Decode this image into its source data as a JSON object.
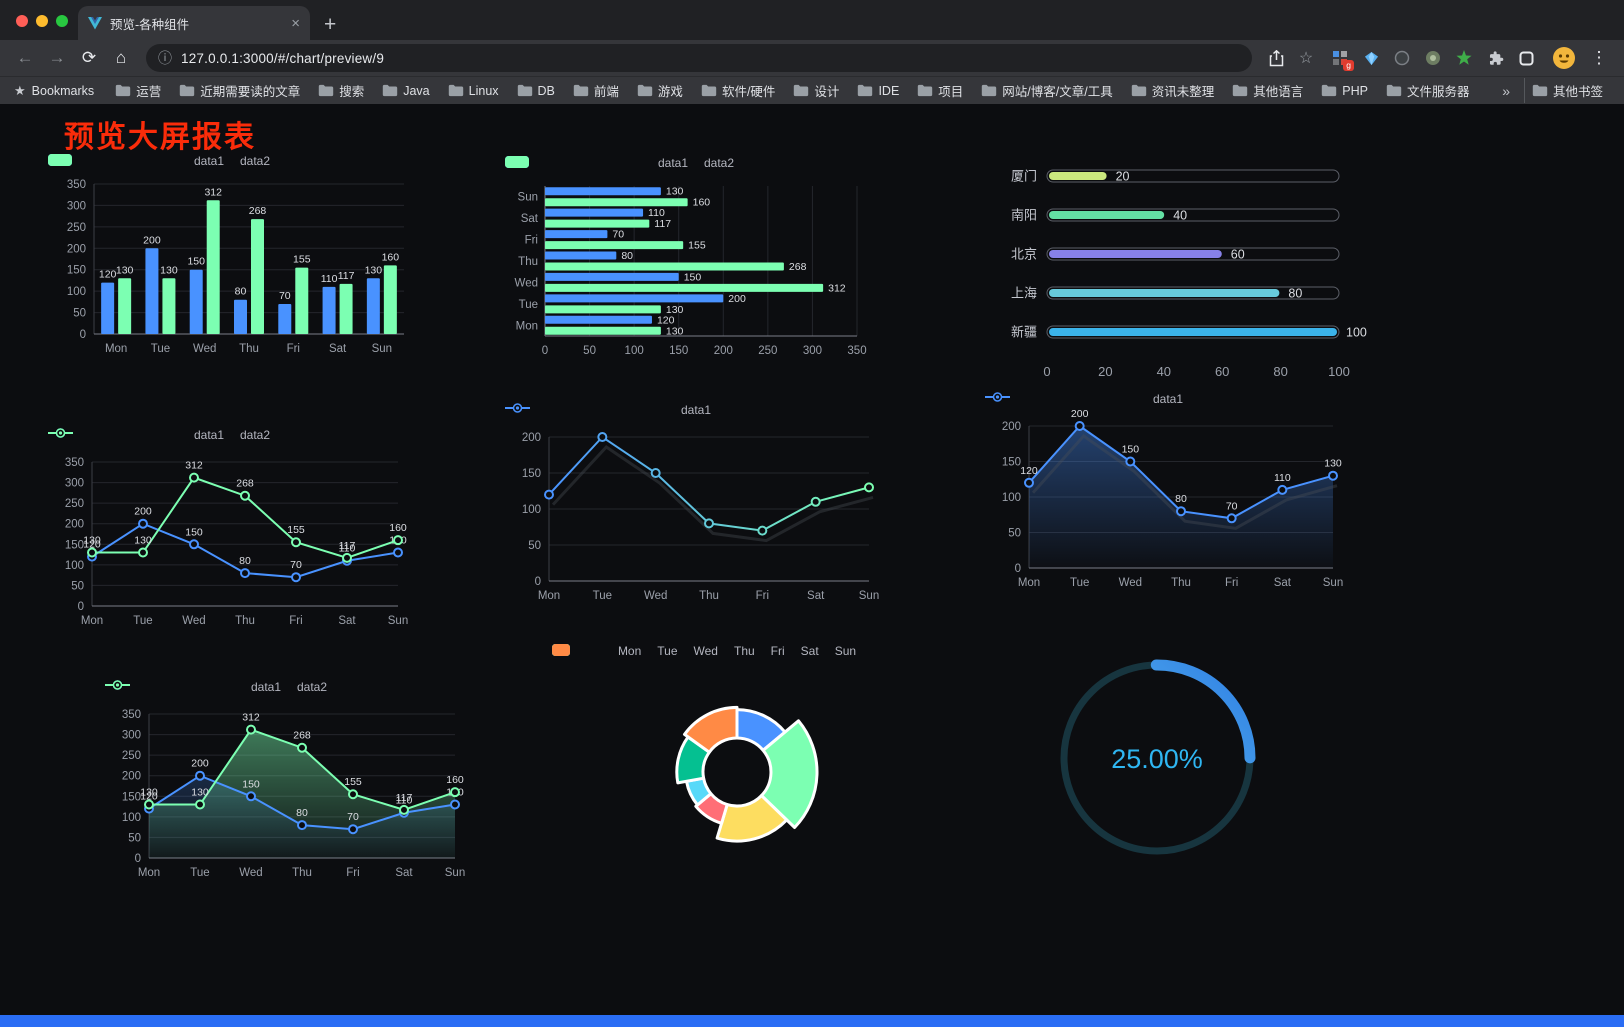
{
  "browser": {
    "tab_title": "预览-各种组件",
    "url": "127.0.0.1:3000/#/chart/preview/9",
    "bookmarks_label": "Bookmarks",
    "bookmarks": [
      "运营",
      "近期需要读的文章",
      "搜索",
      "Java",
      "Linux",
      "DB",
      "前端",
      "游戏",
      "软件/硬件",
      "设计",
      "IDE",
      "项目",
      "网站/博客/文章/工具",
      "资讯未整理",
      "其他语言",
      "PHP",
      "文件服务器"
    ],
    "bookmarks_overflow": "»",
    "other_bookmarks": "其他书签",
    "extensions_badge": "g"
  },
  "page": {
    "title": "预览大屏报表",
    "title_color": "#fa2c0a",
    "footer_color": "#2a6df4"
  },
  "chart_data": [
    {
      "type": "bar",
      "legend": true,
      "legend_marker": "rect",
      "labels": true,
      "grid": true,
      "categories": [
        "Mon",
        "Tue",
        "Wed",
        "Thu",
        "Fri",
        "Sat",
        "Sun"
      ],
      "series": [
        {
          "name": "data1",
          "color": "#4992ff",
          "values": [
            120,
            200,
            150,
            80,
            70,
            110,
            130
          ]
        },
        {
          "name": "data2",
          "color": "#7cffb2",
          "values": [
            130,
            130,
            312,
            268,
            155,
            117,
            160
          ]
        }
      ],
      "ylim": [
        0,
        350
      ],
      "ytick": 50
    },
    {
      "type": "hbar",
      "legend": true,
      "legend_marker": "rect",
      "labels": true,
      "grid": true,
      "categories": [
        "Mon",
        "Tue",
        "Wed",
        "Thu",
        "Fri",
        "Sat",
        "Sun"
      ],
      "series": [
        {
          "name": "data1",
          "color": "#4992ff",
          "values": [
            120,
            200,
            150,
            80,
            70,
            110,
            130
          ]
        },
        {
          "name": "data2",
          "color": "#7cffb2",
          "values": [
            130,
            130,
            312,
            268,
            155,
            117,
            160
          ]
        }
      ],
      "ylim": [
        0,
        350
      ],
      "ytick": 50
    },
    {
      "type": "progress",
      "rows": [
        {
          "label": "厦门",
          "value": 20,
          "color": "#cbe87e"
        },
        {
          "label": "南阳",
          "value": 40,
          "color": "#63e0a4"
        },
        {
          "label": "北京",
          "value": 60,
          "color": "#8781e8"
        },
        {
          "label": "上海",
          "value": 80,
          "color": "#67cadb"
        },
        {
          "label": "新疆",
          "value": 100,
          "color": "#3bb3ea"
        }
      ],
      "xticks": [
        0,
        20,
        40,
        60,
        80,
        100
      ],
      "xlim": [
        0,
        100
      ]
    },
    {
      "type": "line",
      "legend": true,
      "legend_marker": "line",
      "labels": true,
      "grid": true,
      "categories": [
        "Mon",
        "Tue",
        "Wed",
        "Thu",
        "Fri",
        "Sat",
        "Sun"
      ],
      "series": [
        {
          "name": "data1",
          "color": "#4992ff",
          "values": [
            120,
            200,
            150,
            80,
            70,
            110,
            130
          ]
        },
        {
          "name": "data2",
          "color": "#7cffb2",
          "values": [
            130,
            130,
            312,
            268,
            155,
            117,
            160
          ]
        }
      ],
      "ylim": [
        0,
        350
      ],
      "ytick": 50
    },
    {
      "type": "line",
      "legend": true,
      "legend_marker": "line",
      "labels": false,
      "grid": true,
      "shadow": true,
      "categories": [
        "Mon",
        "Tue",
        "Wed",
        "Thu",
        "Fri",
        "Sat",
        "Sun"
      ],
      "series": [
        {
          "name": "data1",
          "gradient": [
            "#4992ff",
            "#7cffb2"
          ],
          "values": [
            120,
            200,
            150,
            80,
            70,
            110,
            130
          ]
        }
      ],
      "ylim": [
        0,
        200
      ],
      "ytick": 50
    },
    {
      "type": "line",
      "legend": true,
      "legend_marker": "line",
      "labels": true,
      "grid": true,
      "shadow": true,
      "categories": [
        "Mon",
        "Tue",
        "Wed",
        "Thu",
        "Fri",
        "Sat",
        "Sun"
      ],
      "series": [
        {
          "name": "data1",
          "color": "#4992ff",
          "values": [
            120,
            200,
            150,
            80,
            70,
            110,
            130
          ],
          "area": [
            "rgba(73,146,255,0.40)",
            "rgba(73,146,255,0.02)"
          ]
        }
      ],
      "ylim": [
        0,
        200
      ],
      "ytick": 50
    },
    {
      "type": "line",
      "legend": true,
      "legend_marker": "line",
      "labels": true,
      "grid": true,
      "categories": [
        "Mon",
        "Tue",
        "Wed",
        "Thu",
        "Fri",
        "Sat",
        "Sun"
      ],
      "series": [
        {
          "name": "data1",
          "color": "#4992ff",
          "values": [
            120,
            200,
            150,
            80,
            70,
            110,
            130
          ],
          "area": [
            "rgba(73,146,255,0.22)",
            "rgba(73,146,255,0.02)"
          ]
        },
        {
          "name": "data2",
          "color": "#7cffb2",
          "values": [
            130,
            130,
            312,
            268,
            155,
            117,
            160
          ],
          "area": [
            "rgba(124,255,178,0.45)",
            "rgba(124,255,178,0.04)"
          ]
        }
      ],
      "ylim": [
        0,
        350
      ],
      "ytick": 50
    },
    {
      "type": "pie-rose",
      "legend": true,
      "legend_marker": "rect-sm",
      "categories": [
        "Mon",
        "Tue",
        "Wed",
        "Thu",
        "Fri",
        "Sat",
        "Sun"
      ],
      "values": [
        120,
        200,
        150,
        80,
        70,
        110,
        130
      ],
      "colors": [
        "#4992ff",
        "#7cffb2",
        "#fddd60",
        "#ff6e76",
        "#58d9f9",
        "#05c091",
        "#ff8a45"
      ]
    },
    {
      "type": "ring",
      "value": 25,
      "label": "25.00%",
      "track_color": "#17353f",
      "arc_colors": [
        "#6fd5f6",
        "#2f7fe3"
      ],
      "text_color": "#2fb6f2"
    }
  ]
}
